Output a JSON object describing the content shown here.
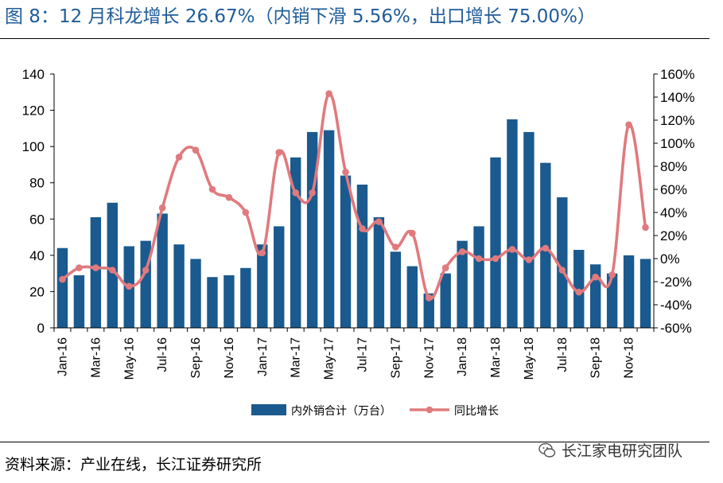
{
  "header": {
    "title": "图 8：12 月科龙增长 26.67%（内销下滑 5.56%，出口增长 75.00%）"
  },
  "footer": {
    "source": "资料来源：产业在线，长江证券研究所",
    "watermark": "长江家电研究团队"
  },
  "colors": {
    "bar": "#1a5a8e",
    "line": "#e07a7e",
    "title": "#1f5c99"
  },
  "chart_data": {
    "type": "bar",
    "title": "",
    "categories": [
      "Jan-16",
      "Feb-16",
      "Mar-16",
      "Apr-16",
      "May-16",
      "Jun-16",
      "Jul-16",
      "Aug-16",
      "Sep-16",
      "Oct-16",
      "Nov-16",
      "Dec-16",
      "Jan-17",
      "Feb-17",
      "Mar-17",
      "Apr-17",
      "May-17",
      "Jun-17",
      "Jul-17",
      "Aug-17",
      "Sep-17",
      "Oct-17",
      "Nov-17",
      "Dec-17",
      "Jan-18",
      "Feb-18",
      "Mar-18",
      "Apr-18",
      "May-18",
      "Jun-18",
      "Jul-18",
      "Aug-18",
      "Sep-18",
      "Oct-18",
      "Nov-18",
      "Dec-18"
    ],
    "x_tick_labels": [
      "Jan-16",
      "Mar-16",
      "May-16",
      "Jul-16",
      "Sep-16",
      "Nov-16",
      "Jan-17",
      "Mar-17",
      "May-17",
      "Jul-17",
      "Sep-17",
      "Nov-17",
      "Jan-18",
      "Mar-18",
      "May-18",
      "Jul-18",
      "Sep-18",
      "Nov-18"
    ],
    "series": [
      {
        "name": "内外销合计（万台）",
        "type": "bar",
        "axis": "left",
        "values": [
          44,
          29,
          61,
          69,
          45,
          48,
          63,
          46,
          38,
          28,
          29,
          33,
          46,
          56,
          94,
          108,
          109,
          84,
          79,
          61,
          42,
          34,
          19,
          30,
          48,
          56,
          94,
          115,
          108,
          91,
          72,
          43,
          35,
          30,
          40,
          38
        ]
      },
      {
        "name": "同比增长",
        "type": "line",
        "axis": "right",
        "values": [
          -18,
          -8,
          -8,
          -10,
          -24,
          -10,
          44,
          88,
          94,
          60,
          53,
          40,
          5,
          92,
          57,
          57,
          143,
          75,
          26,
          32,
          10,
          22,
          -34,
          -8,
          6,
          0,
          0,
          8,
          -1,
          9,
          -10,
          -29,
          -16,
          -14,
          116,
          27
        ]
      }
    ],
    "y_left": {
      "min": 0,
      "max": 140,
      "ticks": [
        0,
        20,
        40,
        60,
        80,
        100,
        120,
        140
      ]
    },
    "y_right": {
      "min": -60,
      "max": 160,
      "ticks": [
        "-60%",
        "-40%",
        "-20%",
        "0%",
        "20%",
        "40%",
        "60%",
        "80%",
        "100%",
        "120%",
        "140%",
        "160%"
      ]
    },
    "legend_position": "bottom",
    "grid": false
  }
}
